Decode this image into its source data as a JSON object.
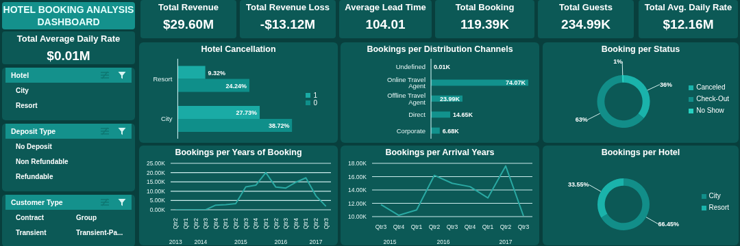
{
  "chart_data": [
    {
      "type": "other",
      "title": "HOTEL BOOKING ANALYSIS DASHBOARD"
    },
    {
      "type": "other",
      "title": "Total Average Daily Rate",
      "annotations": [
        "$0.01M"
      ]
    },
    {
      "type": "other",
      "title": "Hotel",
      "annotations": [
        "City",
        "Resort"
      ]
    },
    {
      "type": "other",
      "title": "Deposit Type",
      "annotations": [
        "No Deposit",
        "Non Refundable",
        "Refundable"
      ]
    },
    {
      "type": "other",
      "title": "Customer Type",
      "annotations": [
        "Contract",
        "Group",
        "Transient",
        "Transient-Pa..."
      ]
    },
    {
      "type": "other",
      "title": "Total Revenue",
      "annotations": [
        "$29.60M"
      ]
    },
    {
      "type": "other",
      "title": "Total Revenue Loss",
      "annotations": [
        "-$13.12M"
      ]
    },
    {
      "type": "other",
      "title": "Average Lead Time",
      "annotations": [
        "104.01"
      ]
    },
    {
      "type": "other",
      "title": "Total Booking",
      "annotations": [
        "119.39K"
      ]
    },
    {
      "type": "other",
      "title": "Total Guests",
      "annotations": [
        "234.99K"
      ]
    },
    {
      "type": "other",
      "title": "Total Avg. Daily Rate",
      "annotations": [
        "$12.16M"
      ]
    },
    {
      "type": "bar",
      "title": "Hotel Cancellation",
      "orientation": "horizontal",
      "categories": [
        "Resort",
        "City"
      ],
      "tick_labels": "y",
      "legend": "right",
      "series": [
        {
          "name": "1",
          "color": "#1aaba5",
          "values": [
            9.32,
            27.73
          ],
          "value_labels": [
            "9.32%",
            "27.73%"
          ]
        },
        {
          "name": "0",
          "color": "#0f8f8a",
          "values": [
            24.24,
            38.72
          ],
          "value_labels": [
            "24.24%",
            "38.72%"
          ]
        }
      ]
    },
    {
      "type": "bar",
      "title": "Bookings per Distribution Channels",
      "orientation": "horizontal",
      "categories": [
        "Undefined",
        "Online Travel Agent",
        "Offline Travel Agent",
        "Direct",
        "Corporate"
      ],
      "tick_labels": "y",
      "color": "#12928d",
      "values": [
        10,
        74070,
        23990,
        14650,
        6680
      ],
      "value_labels": [
        "0.01K",
        "74.07K",
        "23.99K",
        "14.65K",
        "6.68K"
      ]
    },
    {
      "type": "donut",
      "title": "Booking per Status",
      "categories": [
        "Canceled",
        "Check-Out",
        "No Show"
      ],
      "values": [
        36,
        63,
        1
      ],
      "colors": [
        "#1ab3ab",
        "#128e89",
        "#27d1c1"
      ],
      "value_labels": [
        "36%",
        "63%",
        "1%"
      ],
      "legend": "right"
    },
    {
      "type": "line",
      "title": "Bookings per Years of Booking",
      "categories": [
        "Qtr2",
        "Qtr1",
        "Qtr2",
        "Qtr3",
        "Qtr4",
        "Qtr1",
        "Qtr2",
        "Qtr3",
        "Qtr4",
        "Qtr1",
        "Qtr2",
        "Qtr3",
        "Qtr4",
        "Qtr1",
        "Qtr2",
        "Qtr3"
      ],
      "annotations": [
        "2013",
        "2014",
        "2015",
        "2016",
        "2017"
      ],
      "color": "#2aa9a3",
      "values": [
        0,
        0,
        0,
        0,
        2500,
        2800,
        3300,
        12300,
        13200,
        20000,
        12200,
        11700,
        14800,
        17200,
        7500,
        1900
      ],
      "ylim": [
        0,
        25000
      ],
      "yticks": [
        {
          "value": 0,
          "label": "0.00K"
        },
        {
          "value": 5000,
          "label": "5.00K"
        },
        {
          "value": 10000,
          "label": "10.00K"
        },
        {
          "value": 15000,
          "label": "15.00K"
        },
        {
          "value": 20000,
          "label": "20.00K"
        },
        {
          "value": 25000,
          "label": "25.00K"
        }
      ],
      "grid": "y"
    },
    {
      "type": "line",
      "title": "Bookings per Arrival Years",
      "categories": [
        "Qtr3",
        "Qtr4",
        "Qtr1",
        "Qtr2",
        "Qtr3",
        "Qtr4",
        "Qtr1",
        "Qtr2",
        "Qtr3"
      ],
      "annotations": [
        "2015",
        "2016",
        "2017"
      ],
      "color": "#2aa9a3",
      "values": [
        11800,
        10200,
        11000,
        16200,
        15000,
        14500,
        12800,
        17600,
        10100
      ],
      "ylim": [
        10000,
        18000
      ],
      "yticks": [
        {
          "value": 10000,
          "label": "10.00K"
        },
        {
          "value": 12000,
          "label": "12.00K"
        },
        {
          "value": 14000,
          "label": "14.00K"
        },
        {
          "value": 16000,
          "label": "16.00K"
        },
        {
          "value": 18000,
          "label": "18.00K"
        }
      ],
      "grid": "y"
    },
    {
      "type": "donut",
      "title": "Bookings per Hotel",
      "categories": [
        "City",
        "Resort"
      ],
      "values": [
        66.45,
        33.55
      ],
      "colors": [
        "#128e89",
        "#1ab3ab"
      ],
      "value_labels": [
        "66.45%",
        "33.55%"
      ],
      "legend": "right"
    }
  ]
}
